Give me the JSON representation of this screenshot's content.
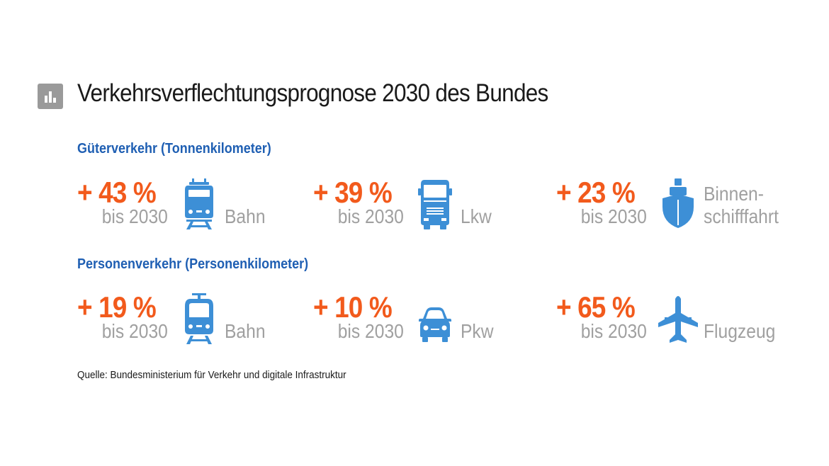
{
  "title": "Verkehrsverflechtungsprognose 2030 des Bundes",
  "accent_color": "#f25a1c",
  "icon_color": "#3d8fd6",
  "heading_color": "#1f5fb3",
  "sections": [
    {
      "heading": "Güterverkehr (Tonnenkilometer)",
      "items": [
        {
          "value": "+ 43 %",
          "sub": "bis 2030",
          "label": "Bahn",
          "icon": "freight-train-icon"
        },
        {
          "value": "+ 39 %",
          "sub": "bis 2030",
          "label": "Lkw",
          "icon": "truck-icon"
        },
        {
          "value": "+ 23 %",
          "sub": "bis 2030",
          "label_line1": "Binnen-",
          "label_line2": "schifffahrt",
          "icon": "ship-icon"
        }
      ]
    },
    {
      "heading": "Personenverkehr (Personenkilometer)",
      "items": [
        {
          "value": "+ 19 %",
          "sub": "bis 2030",
          "label": "Bahn",
          "icon": "passenger-train-icon"
        },
        {
          "value": "+ 10 %",
          "sub": "bis 2030",
          "label": "Pkw",
          "icon": "car-icon"
        },
        {
          "value": "+ 65 %",
          "sub": "bis 2030",
          "label": "Flugzeug",
          "icon": "airplane-icon"
        }
      ]
    }
  ],
  "source": "Quelle: Bundesministerium für Verkehr und digitale Infrastruktur"
}
